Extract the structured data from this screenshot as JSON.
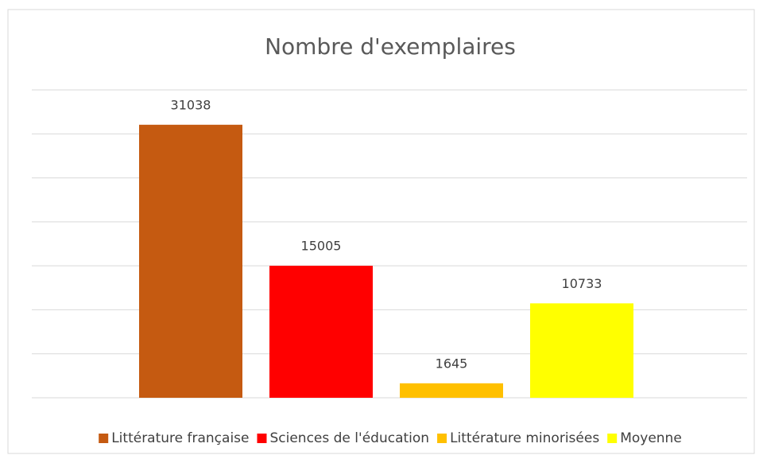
{
  "chart_data": {
    "type": "bar",
    "title": "Nombre d'exemplaires",
    "categories": [
      null
    ],
    "series": [
      {
        "name": "Littérature française",
        "color": "#c55a11",
        "values": [
          31038
        ]
      },
      {
        "name": "Sciences de l'éducation",
        "color": "#ff0000",
        "values": [
          15005
        ]
      },
      {
        "name": "Littérature minorisées",
        "color": "#ffc000",
        "values": [
          1645
        ]
      },
      {
        "name": "Moyenne",
        "color": "#ffff00",
        "values": [
          10733
        ]
      }
    ],
    "ylim": [
      0,
      35000
    ],
    "yticks": [
      0,
      5000,
      10000,
      15000,
      20000,
      25000,
      30000,
      35000
    ],
    "grid": true,
    "legend": "bottom"
  }
}
